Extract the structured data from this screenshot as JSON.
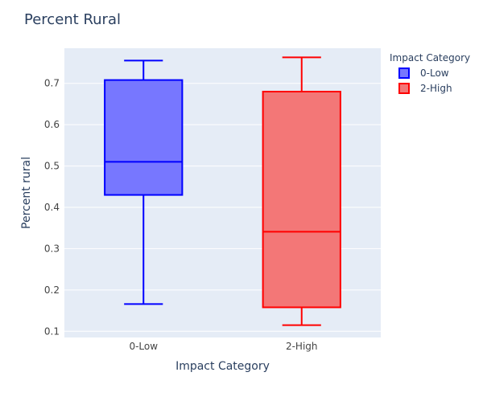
{
  "chart_data": {
    "type": "box",
    "title": "Percent Rural",
    "xlabel": "Impact Category",
    "ylabel": "Percent rural",
    "categories": [
      "0-Low",
      "2-High"
    ],
    "ylim": [
      0.085,
      0.785
    ],
    "yticks": [
      0.1,
      0.2,
      0.3,
      0.4,
      0.5,
      0.6,
      0.7
    ],
    "ytick_labels": [
      "0.1",
      "0.2",
      "0.3",
      "0.4",
      "0.5",
      "0.6",
      "0.7"
    ],
    "grid": true,
    "legend": {
      "title": "Impact Category",
      "position": "top-right"
    },
    "series": [
      {
        "name": "0-Low",
        "category": "0-Low",
        "min": 0.166,
        "q1": 0.43,
        "median": 0.51,
        "q3": 0.708,
        "max": 0.755,
        "line_color": "#0000ff",
        "fill_color": "#7777ff"
      },
      {
        "name": "2-High",
        "category": "2-High",
        "min": 0.115,
        "q1": 0.158,
        "median": 0.341,
        "q3": 0.68,
        "max": 0.763,
        "line_color": "#ff0000",
        "fill_color": "#f37777"
      }
    ],
    "colors": {
      "plot_bg": "#e5ecf6",
      "grid": "#ffffff",
      "text": "#2a3f5f",
      "tick_text": "#444444"
    }
  }
}
